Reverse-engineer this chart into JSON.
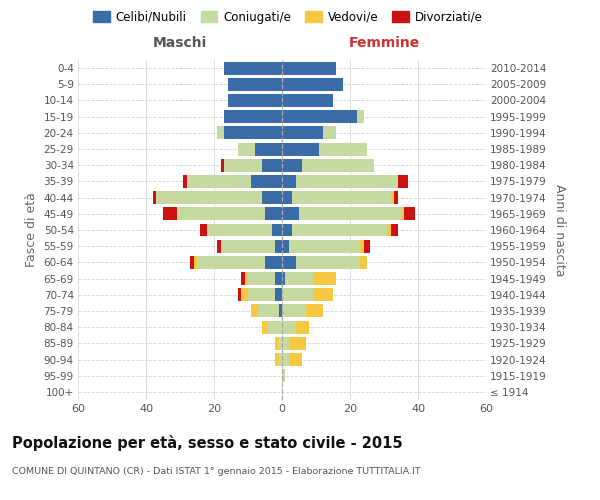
{
  "age_groups": [
    "100+",
    "95-99",
    "90-94",
    "85-89",
    "80-84",
    "75-79",
    "70-74",
    "65-69",
    "60-64",
    "55-59",
    "50-54",
    "45-49",
    "40-44",
    "35-39",
    "30-34",
    "25-29",
    "20-24",
    "15-19",
    "10-14",
    "5-9",
    "0-4"
  ],
  "birth_years": [
    "≤ 1914",
    "1915-1919",
    "1920-1924",
    "1925-1929",
    "1930-1934",
    "1935-1939",
    "1940-1944",
    "1945-1949",
    "1950-1954",
    "1955-1959",
    "1960-1964",
    "1965-1969",
    "1970-1974",
    "1975-1979",
    "1980-1984",
    "1985-1989",
    "1990-1994",
    "1995-1999",
    "2000-2004",
    "2005-2009",
    "2010-2014"
  ],
  "colors": {
    "celibe": "#3a6da8",
    "coniugato": "#c5d9a0",
    "vedovo": "#f5c842",
    "divorziato": "#cc1111"
  },
  "males": {
    "celibe": [
      0,
      0,
      0,
      0,
      0,
      1,
      2,
      2,
      5,
      2,
      3,
      5,
      6,
      9,
      6,
      8,
      17,
      17,
      16,
      16,
      17
    ],
    "coniugato": [
      0,
      0,
      1,
      1,
      4,
      6,
      8,
      8,
      20,
      16,
      19,
      26,
      31,
      19,
      11,
      5,
      2,
      0,
      0,
      0,
      0
    ],
    "vedovo": [
      0,
      0,
      1,
      1,
      2,
      2,
      2,
      1,
      1,
      0,
      0,
      0,
      0,
      0,
      0,
      0,
      0,
      0,
      0,
      0,
      0
    ],
    "divorziato": [
      0,
      0,
      0,
      0,
      0,
      0,
      1,
      1,
      1,
      1,
      2,
      4,
      1,
      1,
      1,
      0,
      0,
      0,
      0,
      0,
      0
    ]
  },
  "females": {
    "nubile": [
      0,
      0,
      0,
      0,
      0,
      0,
      0,
      1,
      4,
      2,
      3,
      5,
      3,
      4,
      6,
      11,
      12,
      22,
      15,
      18,
      16
    ],
    "coniugata": [
      0,
      1,
      2,
      2,
      4,
      7,
      9,
      8,
      19,
      21,
      28,
      30,
      29,
      30,
      21,
      14,
      4,
      2,
      0,
      0,
      0
    ],
    "vedova": [
      0,
      0,
      4,
      5,
      4,
      5,
      6,
      7,
      2,
      1,
      1,
      1,
      1,
      0,
      0,
      0,
      0,
      0,
      0,
      0,
      0
    ],
    "divorziata": [
      0,
      0,
      0,
      0,
      0,
      0,
      0,
      0,
      0,
      2,
      2,
      3,
      1,
      3,
      0,
      0,
      0,
      0,
      0,
      0,
      0
    ]
  },
  "xlim": 60,
  "title": "Popolazione per età, sesso e stato civile - 2015",
  "subtitle": "COMUNE DI QUINTANO (CR) - Dati ISTAT 1° gennaio 2015 - Elaborazione TUTTITALIA.IT",
  "ylabel_left": "Fasce di età",
  "ylabel_right": "Anni di nascita",
  "header_left": "Maschi",
  "header_right": "Femmine",
  "legend_labels": [
    "Celibi/Nubili",
    "Coniugati/e",
    "Vedovi/e",
    "Divorziati/e"
  ],
  "background_color": "#ffffff",
  "grid_color": "#d0d0d0"
}
